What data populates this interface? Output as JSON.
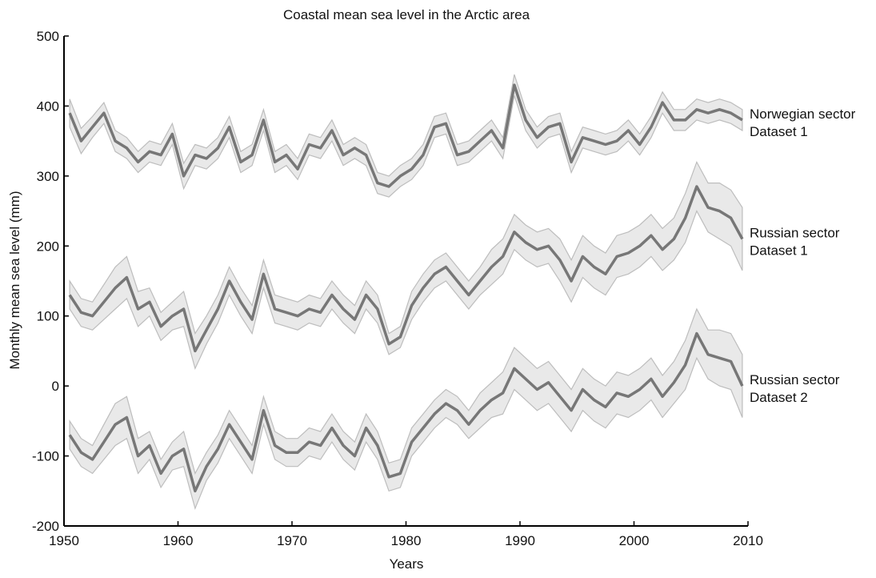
{
  "chart_data": {
    "type": "line",
    "title": "Coastal mean sea level in the Arctic area",
    "xlabel": "Years",
    "ylabel": "Monthly mean sea level (mm)",
    "xlim": [
      1950,
      2010
    ],
    "xticks": [
      1950,
      1960,
      1970,
      1980,
      1990,
      2000,
      2010
    ],
    "ylim": [
      -200,
      500
    ],
    "yticks": [
      -200,
      -100,
      0,
      100,
      200,
      300,
      400,
      500
    ],
    "band_color": "#e9e9e9",
    "band_edge": "#bdbdbd",
    "x": [
      1950.5,
      1951.5,
      1952.5,
      1953.5,
      1954.5,
      1955.5,
      1956.5,
      1957.5,
      1958.5,
      1959.5,
      1960.5,
      1961.5,
      1962.5,
      1963.5,
      1964.5,
      1965.5,
      1966.5,
      1967.5,
      1968.5,
      1969.5,
      1970.5,
      1971.5,
      1972.5,
      1973.5,
      1974.5,
      1975.5,
      1976.5,
      1977.5,
      1978.5,
      1979.5,
      1980.5,
      1981.5,
      1982.5,
      1983.5,
      1984.5,
      1985.5,
      1986.5,
      1987.5,
      1988.5,
      1989.5,
      1990.5,
      1991.5,
      1992.5,
      1993.5,
      1994.5,
      1995.5,
      1996.5,
      1997.5,
      1998.5,
      1999.5,
      2000.5,
      2001.5,
      2002.5,
      2003.5,
      2004.5,
      2005.5,
      2006.5,
      2007.5,
      2008.5,
      2009.5
    ],
    "series": [
      {
        "name": [
          "Norwegian sector",
          "Dataset 1"
        ],
        "color": "#777777",
        "values": [
          390,
          350,
          370,
          390,
          350,
          340,
          320,
          335,
          330,
          360,
          300,
          330,
          325,
          340,
          370,
          320,
          330,
          380,
          320,
          330,
          310,
          345,
          340,
          365,
          330,
          340,
          330,
          290,
          285,
          300,
          310,
          330,
          370,
          375,
          330,
          335,
          350,
          365,
          340,
          430,
          380,
          355,
          370,
          375,
          320,
          355,
          350,
          345,
          350,
          365,
          345,
          370,
          405,
          380,
          380,
          395,
          390,
          395,
          390,
          380
        ],
        "errors": [
          20,
          18,
          15,
          15,
          15,
          15,
          15,
          15,
          15,
          15,
          18,
          15,
          15,
          15,
          15,
          15,
          15,
          15,
          15,
          15,
          15,
          15,
          15,
          15,
          15,
          15,
          15,
          15,
          15,
          15,
          15,
          15,
          15,
          15,
          15,
          15,
          15,
          15,
          15,
          15,
          15,
          15,
          15,
          15,
          15,
          15,
          15,
          15,
          15,
          15,
          15,
          15,
          15,
          15,
          15,
          15,
          15,
          15,
          15,
          15
        ]
      },
      {
        "name": [
          "Russian sector",
          "Dataset 1"
        ],
        "color": "#777777",
        "values": [
          130,
          105,
          100,
          120,
          140,
          155,
          110,
          120,
          85,
          100,
          110,
          50,
          80,
          110,
          150,
          120,
          95,
          160,
          110,
          105,
          100,
          110,
          105,
          130,
          110,
          95,
          130,
          110,
          60,
          70,
          115,
          140,
          160,
          170,
          150,
          130,
          150,
          170,
          185,
          220,
          205,
          195,
          200,
          180,
          150,
          185,
          170,
          160,
          185,
          190,
          200,
          215,
          195,
          210,
          240,
          285,
          255,
          250,
          240,
          210
        ],
        "errors": [
          20,
          20,
          20,
          25,
          30,
          30,
          25,
          20,
          20,
          20,
          25,
          25,
          20,
          20,
          20,
          20,
          20,
          20,
          20,
          20,
          20,
          20,
          20,
          20,
          20,
          20,
          20,
          20,
          15,
          15,
          20,
          20,
          20,
          20,
          20,
          20,
          20,
          25,
          25,
          25,
          25,
          25,
          25,
          30,
          30,
          30,
          30,
          30,
          30,
          30,
          30,
          30,
          30,
          30,
          35,
          35,
          35,
          40,
          40,
          45
        ]
      },
      {
        "name": [
          "Russian sector",
          "Dataset 2"
        ],
        "color": "#777777",
        "values": [
          -70,
          -95,
          -105,
          -80,
          -55,
          -45,
          -100,
          -85,
          -125,
          -100,
          -90,
          -150,
          -115,
          -90,
          -55,
          -80,
          -105,
          -35,
          -85,
          -95,
          -95,
          -80,
          -85,
          -60,
          -85,
          -100,
          -60,
          -85,
          -130,
          -125,
          -80,
          -60,
          -40,
          -25,
          -35,
          -55,
          -35,
          -20,
          -10,
          25,
          10,
          -5,
          5,
          -15,
          -35,
          -5,
          -20,
          -30,
          -10,
          -15,
          -5,
          10,
          -15,
          5,
          30,
          75,
          45,
          40,
          35,
          0
        ],
        "errors": [
          20,
          20,
          20,
          25,
          30,
          30,
          25,
          20,
          20,
          20,
          25,
          25,
          20,
          20,
          20,
          20,
          20,
          20,
          20,
          20,
          20,
          20,
          20,
          20,
          20,
          20,
          20,
          20,
          20,
          20,
          20,
          20,
          20,
          20,
          20,
          20,
          25,
          25,
          30,
          30,
          30,
          30,
          30,
          30,
          30,
          30,
          30,
          30,
          30,
          30,
          30,
          30,
          30,
          30,
          35,
          35,
          35,
          40,
          40,
          45
        ]
      }
    ]
  }
}
